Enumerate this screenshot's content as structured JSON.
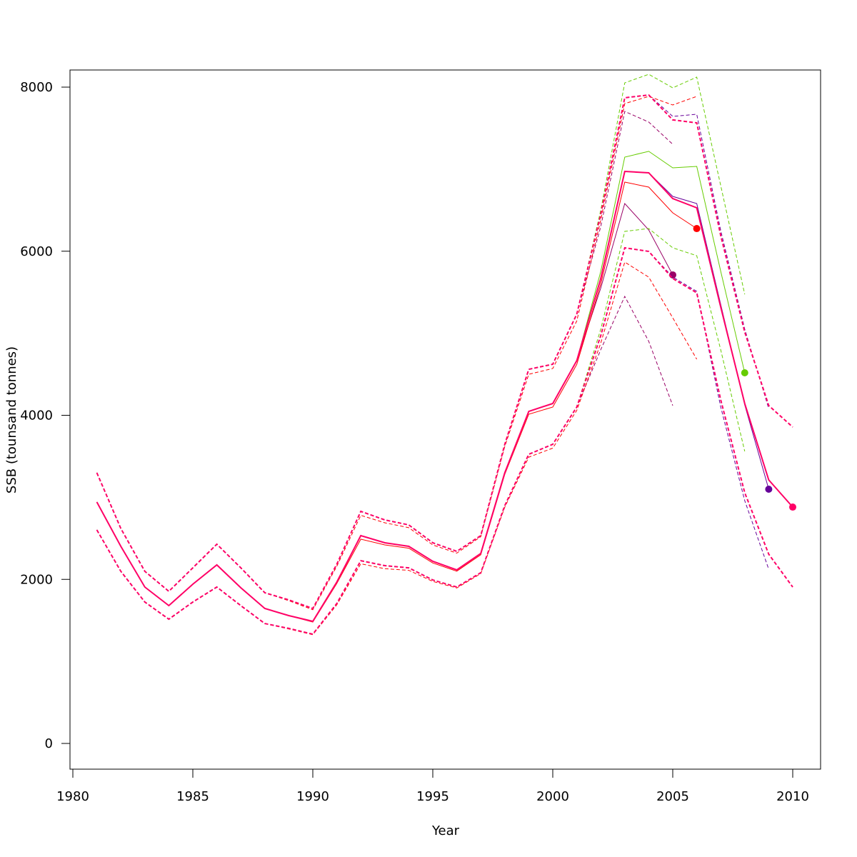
{
  "chart_data": {
    "type": "line",
    "title": "",
    "xlabel": "Year",
    "ylabel": "SSB (tounsand tonnes)",
    "xlim": [
      1980,
      2010
    ],
    "ylim": [
      -300,
      8200
    ],
    "xticks": [
      1980,
      1985,
      1990,
      1995,
      2000,
      2005,
      2010
    ],
    "yticks": [
      0,
      2000,
      4000,
      6000,
      8000
    ],
    "grid": false,
    "start_year": 1981,
    "runs": [
      {
        "name": "2005",
        "color": "#990066",
        "terminal_year": 2005,
        "ssb": [
          2942,
          2403,
          1906,
          1680,
          1941,
          2176,
          1898,
          1645,
          1558,
          1489,
          1967,
          2533,
          2446,
          2403,
          2220,
          2115,
          2316,
          3299,
          4048,
          4144,
          4666,
          5550,
          6581,
          6259,
          5711
        ],
        "upper": [
          3299,
          2620,
          2098,
          1854,
          2141,
          2429,
          2141,
          1837,
          1750,
          1645,
          2185,
          2829,
          2725,
          2664,
          2446,
          2342,
          2533,
          3647,
          4561,
          4622,
          5232,
          6300,
          7704,
          7574,
          7304
        ],
        "lower": [
          2603,
          2098,
          1724,
          1515,
          1724,
          1906,
          1680,
          1462,
          1402,
          1332,
          1706,
          2228,
          2168,
          2141,
          1993,
          1906,
          2081,
          2899,
          3525,
          3647,
          4100,
          4800,
          5449,
          4901,
          4118
        ]
      },
      {
        "name": "2006",
        "color": "#FF0000",
        "terminal_year": 2006,
        "ssb": [
          2942,
          2403,
          1906,
          1680,
          1941,
          2176,
          1898,
          1645,
          1558,
          1480,
          1950,
          2490,
          2420,
          2380,
          2200,
          2100,
          2300,
          3280,
          4013,
          4100,
          4620,
          5600,
          6842,
          6781,
          6468,
          6276
        ],
        "upper": [
          3299,
          2620,
          2098,
          1854,
          2141,
          2429,
          2141,
          1837,
          1740,
          1630,
          2160,
          2780,
          2690,
          2630,
          2420,
          2320,
          2520,
          3620,
          4500,
          4570,
          5150,
          6380,
          7800,
          7887,
          7782,
          7887
        ],
        "lower": [
          2603,
          2098,
          1724,
          1515,
          1724,
          1906,
          1680,
          1462,
          1395,
          1325,
          1690,
          2190,
          2130,
          2110,
          1975,
          1895,
          2070,
          2880,
          3490,
          3600,
          4060,
          4880,
          5867,
          5684,
          5188,
          4683
        ]
      },
      {
        "name": "2008",
        "color": "#66CC00",
        "terminal_year": 2008,
        "ssb": [
          2942,
          2403,
          1906,
          1680,
          1941,
          2176,
          1898,
          1645,
          1558,
          1489,
          1967,
          2533,
          2446,
          2403,
          2220,
          2115,
          2316,
          3299,
          4048,
          4144,
          4666,
          5754,
          7147,
          7217,
          7016,
          7034,
          5754,
          4518
        ],
        "upper": [
          3299,
          2620,
          2098,
          1854,
          2141,
          2429,
          2141,
          1837,
          1750,
          1645,
          2185,
          2829,
          2725,
          2664,
          2446,
          2342,
          2533,
          3647,
          4561,
          4622,
          5232,
          6500,
          8052,
          8157,
          7991,
          8122,
          6799,
          5475
        ],
        "lower": [
          2603,
          2098,
          1724,
          1515,
          1724,
          1906,
          1680,
          1462,
          1402,
          1332,
          1706,
          2228,
          2168,
          2141,
          1993,
          1906,
          2081,
          2899,
          3525,
          3647,
          4100,
          5050,
          6242,
          6276,
          6041,
          5946,
          4797,
          3560
        ]
      },
      {
        "name": "2009",
        "color": "#660099",
        "terminal_year": 2009,
        "ssb": [
          2942,
          2403,
          1906,
          1680,
          1941,
          2176,
          1898,
          1645,
          1558,
          1489,
          1967,
          2533,
          2446,
          2403,
          2220,
          2115,
          2316,
          3299,
          4048,
          4144,
          4666,
          5667,
          6973,
          6955,
          6668,
          6581,
          5350,
          4126,
          3099
        ],
        "upper": [
          3299,
          2620,
          2098,
          1854,
          2141,
          2429,
          2141,
          1837,
          1750,
          1645,
          2185,
          2829,
          2725,
          2664,
          2446,
          2342,
          2533,
          3647,
          4561,
          4622,
          5232,
          6450,
          7870,
          7904,
          7643,
          7669,
          6250,
          5050,
          4083
        ],
        "lower": [
          2603,
          2098,
          1724,
          1515,
          1724,
          1906,
          1680,
          1462,
          1402,
          1332,
          1706,
          2228,
          2168,
          2141,
          1993,
          1906,
          2081,
          2899,
          3525,
          3647,
          4100,
          4971,
          6041,
          5998,
          5685,
          5510,
          4100,
          2960,
          2124
        ]
      },
      {
        "name": "2010",
        "color": "#FF0066",
        "terminal_year": 2010,
        "ssb": [
          2942,
          2403,
          1906,
          1680,
          1941,
          2176,
          1898,
          1645,
          1558,
          1489,
          1967,
          2533,
          2446,
          2403,
          2220,
          2115,
          2316,
          3299,
          4048,
          4144,
          4666,
          5667,
          6973,
          6955,
          6642,
          6529,
          5319,
          4144,
          3212,
          2881
        ],
        "upper": [
          3299,
          2620,
          2098,
          1854,
          2141,
          2429,
          2141,
          1837,
          1750,
          1645,
          2185,
          2829,
          2725,
          2664,
          2446,
          2342,
          2533,
          3647,
          4561,
          4622,
          5232,
          6450,
          7870,
          7904,
          7600,
          7565,
          6189,
          5014,
          4118,
          3856
        ],
        "lower": [
          2603,
          2098,
          1724,
          1515,
          1724,
          1906,
          1680,
          1462,
          1402,
          1332,
          1706,
          2228,
          2168,
          2141,
          1993,
          1906,
          2081,
          2899,
          3525,
          3647,
          4100,
          4971,
          6041,
          5998,
          5667,
          5493,
          4187,
          3056,
          2307,
          1906
        ]
      }
    ]
  }
}
